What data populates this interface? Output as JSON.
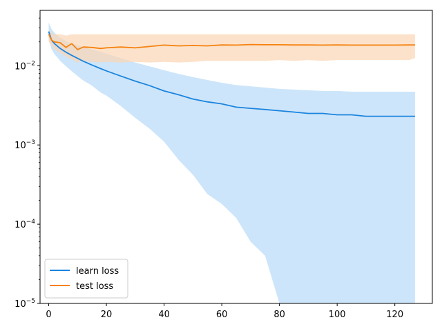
{
  "chart_data": {
    "type": "line",
    "title": "",
    "xlabel": "",
    "ylabel": "",
    "xlim": [
      -3,
      133
    ],
    "ylim": [
      1e-05,
      0.05
    ],
    "y_scale": "log",
    "x_ticks": [
      0,
      20,
      40,
      60,
      80,
      100,
      120
    ],
    "x_tick_labels": [
      "0",
      "20",
      "40",
      "60",
      "80",
      "100",
      "120"
    ],
    "y_ticks": [
      1e-05,
      0.0001,
      0.001,
      0.01
    ],
    "y_tick_labels": [
      {
        "base": "10",
        "exp": "−5"
      },
      {
        "base": "10",
        "exp": "−4"
      },
      {
        "base": "10",
        "exp": "−3"
      },
      {
        "base": "10",
        "exp": "−2"
      }
    ],
    "grid": false,
    "legend": {
      "placement": "lower-left",
      "entries": [
        {
          "label": "learn loss",
          "color": "#1a84de"
        },
        {
          "label": "test loss",
          "color": "#f5820f"
        }
      ]
    },
    "series": [
      {
        "name": "learn loss",
        "color": "#1a84de",
        "band_color": "#bcdcf8",
        "x": [
          0,
          1,
          2,
          4,
          6,
          8,
          10,
          12,
          15,
          18,
          20,
          25,
          30,
          35,
          40,
          45,
          50,
          55,
          60,
          65,
          70,
          75,
          80,
          85,
          90,
          95,
          100,
          105,
          110,
          115,
          120,
          125,
          127
        ],
        "y": [
          0.027,
          0.021,
          0.019,
          0.0165,
          0.0148,
          0.0135,
          0.0124,
          0.0114,
          0.0102,
          0.0092,
          0.0086,
          0.0074,
          0.0064,
          0.0056,
          0.0048,
          0.0043,
          0.0038,
          0.0035,
          0.0033,
          0.003,
          0.0029,
          0.0028,
          0.0027,
          0.0026,
          0.0025,
          0.0025,
          0.0024,
          0.0024,
          0.0023,
          0.0023,
          0.0023,
          0.0023,
          0.0023
        ],
        "upper": [
          0.035,
          0.029,
          0.026,
          0.0225,
          0.0205,
          0.019,
          0.0182,
          0.0172,
          0.016,
          0.015,
          0.0142,
          0.0125,
          0.011,
          0.0098,
          0.0088,
          0.0079,
          0.0072,
          0.0066,
          0.0061,
          0.0057,
          0.0055,
          0.0053,
          0.0051,
          0.005,
          0.0049,
          0.0048,
          0.0048,
          0.0047,
          0.0047,
          0.0047,
          0.0047,
          0.0047,
          0.0047
        ],
        "lower": [
          0.022,
          0.016,
          0.014,
          0.0115,
          0.0098,
          0.0085,
          0.0074,
          0.0065,
          0.0056,
          0.0046,
          0.0042,
          0.0031,
          0.0022,
          0.0016,
          0.0011,
          0.00065,
          0.00042,
          0.00024,
          0.00018,
          0.00012,
          6e-05,
          4e-05,
          1e-05,
          1e-05,
          1e-05,
          1e-05,
          1e-05,
          1e-05,
          1e-05,
          1e-05,
          1e-05,
          1e-05,
          1e-05
        ]
      },
      {
        "name": "test loss",
        "color": "#f5820f",
        "band_color": "#fbd6b3",
        "x": [
          0,
          1,
          2,
          4,
          6,
          8,
          10,
          12,
          15,
          18,
          20,
          25,
          30,
          35,
          40,
          45,
          50,
          55,
          60,
          65,
          70,
          75,
          80,
          85,
          90,
          95,
          100,
          105,
          110,
          115,
          120,
          125,
          127
        ],
        "y": [
          0.025,
          0.021,
          0.02,
          0.0195,
          0.017,
          0.019,
          0.016,
          0.0172,
          0.017,
          0.0165,
          0.0168,
          0.0172,
          0.0168,
          0.0175,
          0.0182,
          0.0178,
          0.018,
          0.0178,
          0.0183,
          0.0182,
          0.0185,
          0.0184,
          0.0184,
          0.0183,
          0.0183,
          0.0182,
          0.0183,
          0.0182,
          0.0182,
          0.0182,
          0.0182,
          0.0183,
          0.0183
        ],
        "upper": [
          0.028,
          0.026,
          0.025,
          0.025,
          0.024,
          0.025,
          0.025,
          0.025,
          0.025,
          0.025,
          0.025,
          0.025,
          0.025,
          0.025,
          0.025,
          0.025,
          0.025,
          0.025,
          0.025,
          0.025,
          0.025,
          0.025,
          0.025,
          0.025,
          0.025,
          0.025,
          0.025,
          0.025,
          0.025,
          0.025,
          0.025,
          0.025,
          0.025
        ],
        "lower": [
          0.02,
          0.018,
          0.016,
          0.0145,
          0.013,
          0.012,
          0.011,
          0.0115,
          0.0112,
          0.011,
          0.0112,
          0.011,
          0.0112,
          0.011,
          0.0112,
          0.011,
          0.0112,
          0.0115,
          0.0115,
          0.0115,
          0.0115,
          0.0115,
          0.0118,
          0.0115,
          0.0118,
          0.0115,
          0.0118,
          0.0118,
          0.0118,
          0.0118,
          0.0118,
          0.0118,
          0.0125
        ]
      }
    ]
  }
}
